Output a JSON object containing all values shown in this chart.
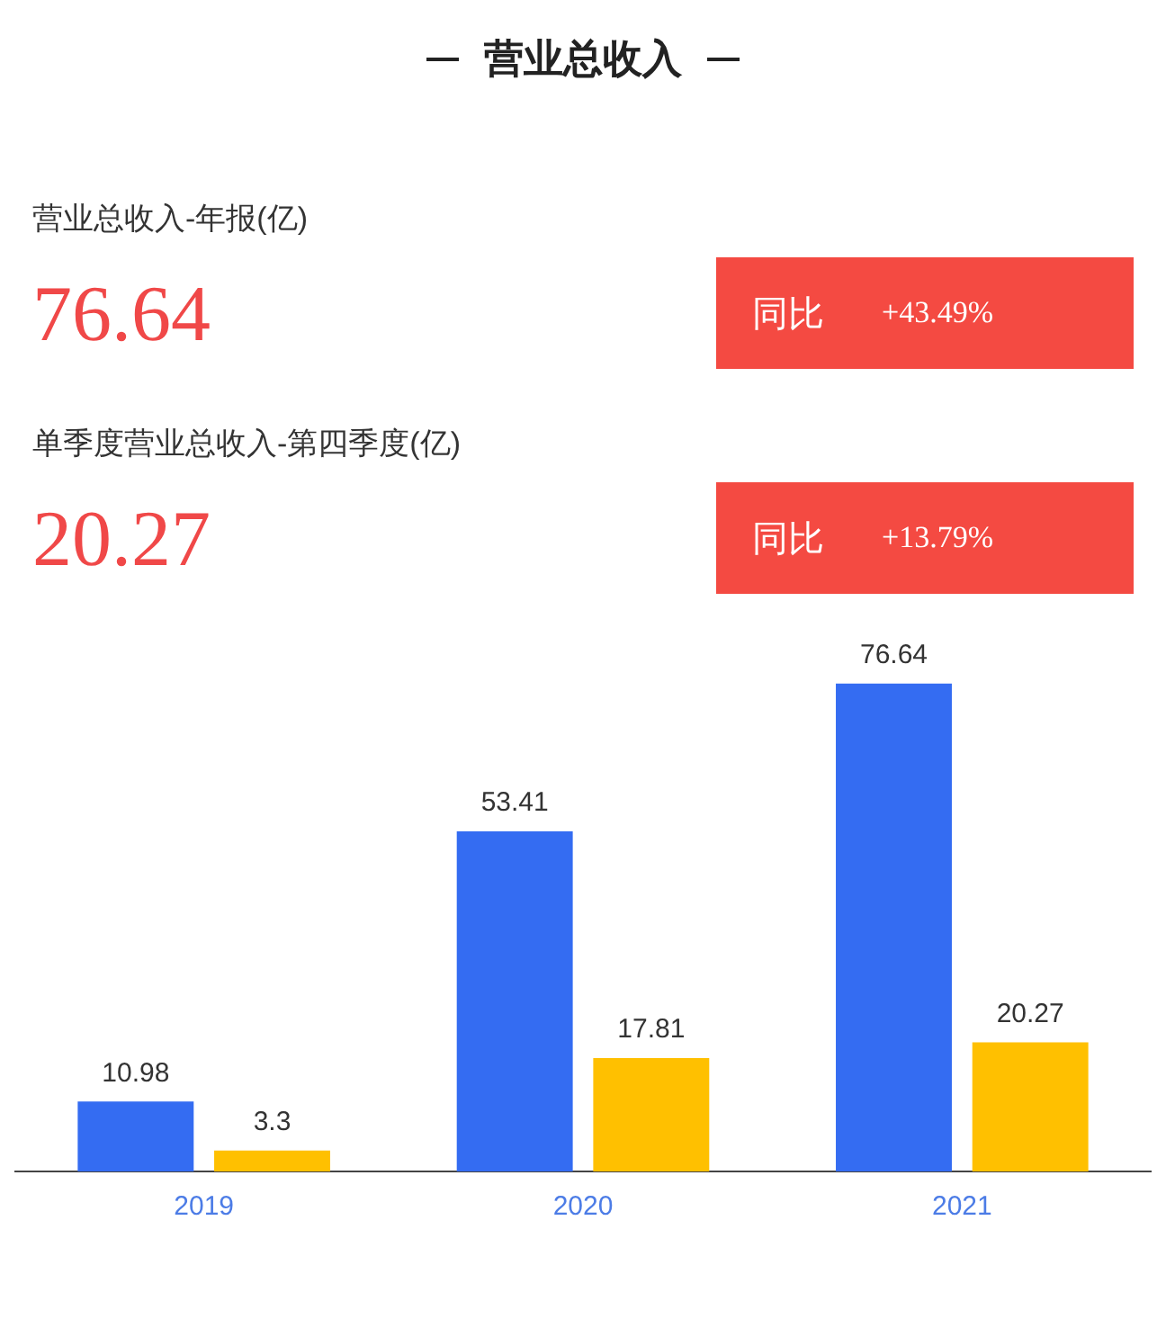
{
  "chart_data": {
    "type": "bar",
    "title": "营业总收入",
    "categories": [
      "2019",
      "2020",
      "2021"
    ],
    "series": [
      {
        "color": "#346cf2",
        "values": [
          10.98,
          53.41,
          76.64
        ]
      },
      {
        "color": "#ffc000",
        "values": [
          3.3,
          17.81,
          20.27
        ]
      }
    ],
    "data_labels": true,
    "legend": false,
    "grid": false,
    "annotations": [
      "营业总收入-年报(亿)",
      "76.64",
      "同比",
      "+43.49%",
      "单季度营业总收入-第四季度(亿)",
      "20.27",
      "同比",
      "+13.79%"
    ]
  }
}
